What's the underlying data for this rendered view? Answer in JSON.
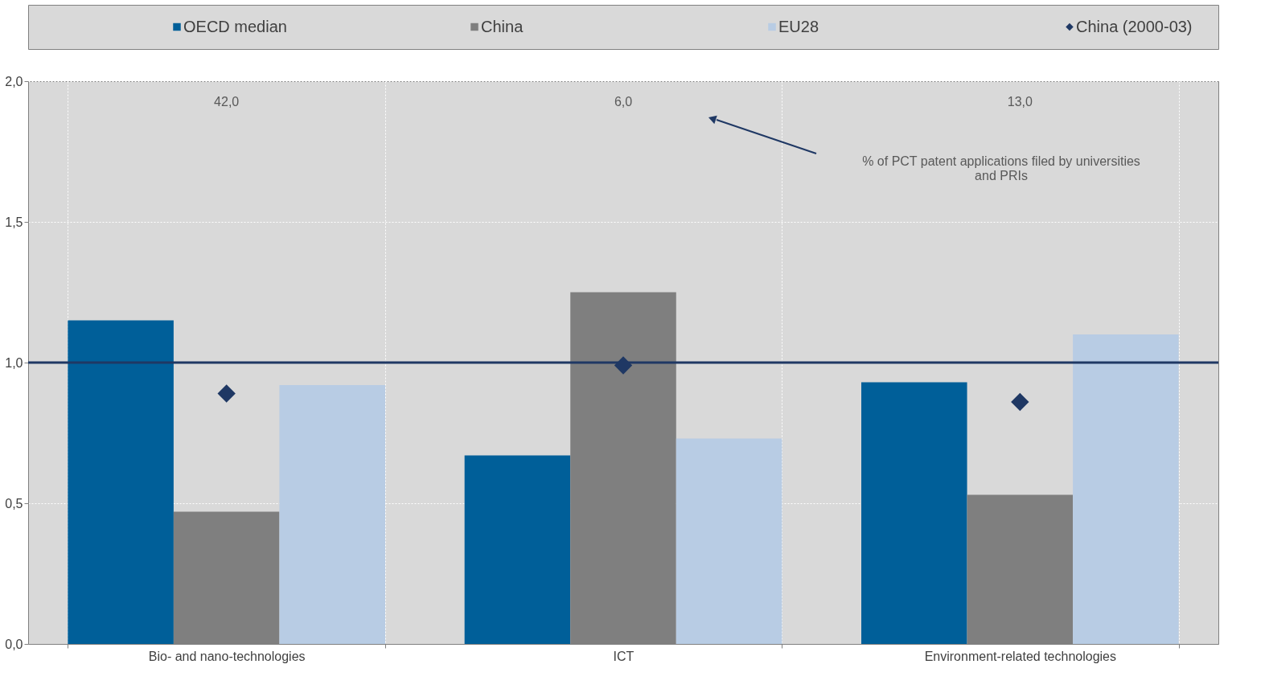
{
  "chart_data": {
    "type": "bar",
    "categories": [
      "Bio- and nano-technologies",
      "ICT",
      "Environment-related technologies"
    ],
    "series": [
      {
        "name": "OECD median",
        "color": "#005f99",
        "values": [
          1.15,
          0.67,
          0.93
        ]
      },
      {
        "name": "China",
        "color": "#7f7f7f",
        "values": [
          0.47,
          1.25,
          0.53
        ]
      },
      {
        "name": "EU28",
        "color": "#b8cce4",
        "values": [
          0.92,
          0.73,
          1.1
        ]
      },
      {
        "name": "China (2000-03)",
        "type": "scatter",
        "marker": "diamond",
        "color": "#1f3864",
        "values": [
          0.89,
          0.99,
          0.86
        ]
      }
    ],
    "ylim": [
      0,
      2
    ],
    "yticks": [
      {
        "value": 0,
        "label": "0,0"
      },
      {
        "value": 0.5,
        "label": "0,5"
      },
      {
        "value": 1,
        "label": "1,0"
      },
      {
        "value": 1.5,
        "label": "1,5"
      },
      {
        "value": 2,
        "label": "2,0"
      }
    ],
    "ref_lines": [
      {
        "axis": "y",
        "value": 1,
        "color": "#1f3864"
      }
    ],
    "annotations": [
      "42,0",
      "6,0",
      "13,0",
      "% of PCT patent applications filed by universities\nand PRIs"
    ],
    "grid": true,
    "legend": "top"
  }
}
